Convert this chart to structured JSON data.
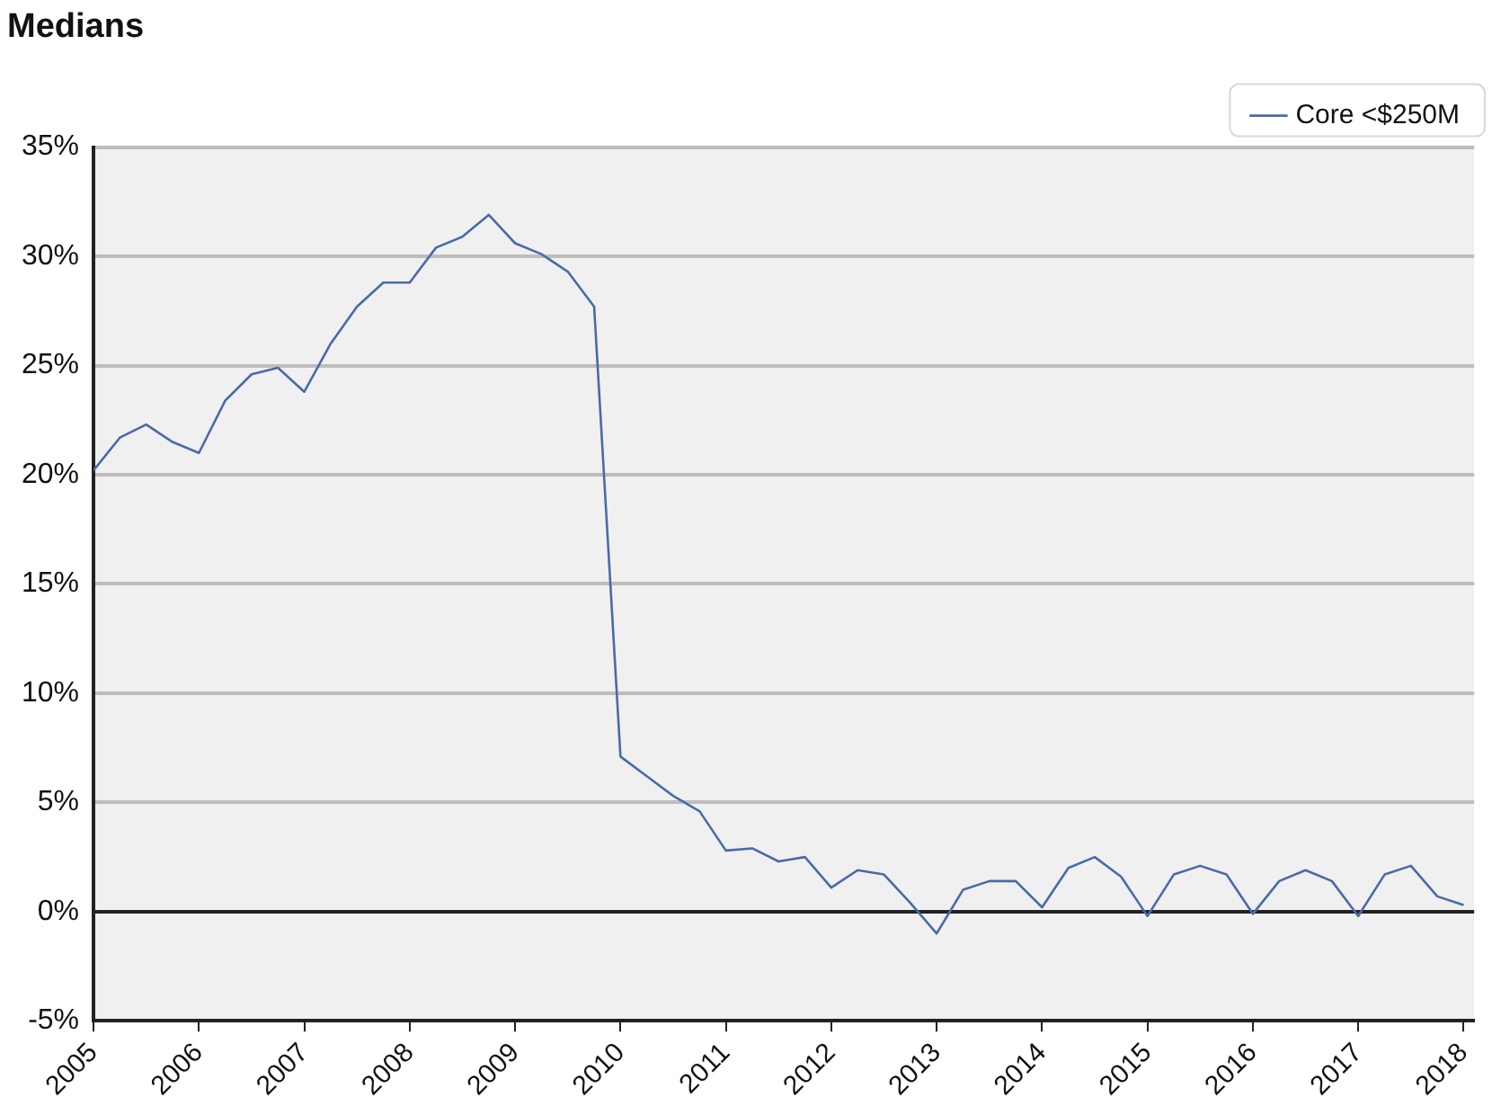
{
  "chart_data": {
    "type": "line",
    "title": "Medians",
    "legend": "top right",
    "grid": "y",
    "xlim": [
      2005,
      2018.1
    ],
    "xticks": [
      2005,
      2006,
      2007,
      2008,
      2009,
      2010,
      2011,
      2012,
      2013,
      2014,
      2015,
      2016,
      2017,
      2018
    ],
    "ylim": [
      -5,
      35
    ],
    "yticks": [
      {
        "value": -5,
        "label": "-5%"
      },
      {
        "value": 0,
        "label": "0%"
      },
      {
        "value": 5,
        "label": "5%"
      },
      {
        "value": 10,
        "label": "10%"
      },
      {
        "value": 15,
        "label": "15%"
      },
      {
        "value": 20,
        "label": "20%"
      },
      {
        "value": 25,
        "label": "25%"
      },
      {
        "value": 30,
        "label": "30%"
      },
      {
        "value": 35,
        "label": "35%"
      }
    ],
    "marker": "none",
    "line_style": "solid",
    "x": [
      2005,
      2005.25,
      2005.5,
      2005.75,
      2006,
      2006.25,
      2006.5,
      2006.75,
      2007,
      2007.25,
      2007.5,
      2007.75,
      2008,
      2008.25,
      2008.5,
      2008.75,
      2009,
      2009.25,
      2009.5,
      2009.75,
      2010,
      2010.25,
      2010.5,
      2010.75,
      2011,
      2011.25,
      2011.5,
      2011.75,
      2012,
      2012.25,
      2012.5,
      2012.75,
      2013,
      2013.25,
      2013.5,
      2013.75,
      2014,
      2014.25,
      2014.5,
      2014.75,
      2015,
      2015.25,
      2015.5,
      2015.75,
      2016,
      2016.25,
      2016.5,
      2016.75,
      2017,
      2017.25,
      2017.5,
      2017.75,
      2018
    ],
    "series": [
      {
        "name": "Core <$250M",
        "color": "#4a6aa8",
        "values": [
          20.2,
          21.7,
          22.3,
          21.5,
          21.0,
          23.4,
          24.6,
          24.9,
          23.8,
          26.0,
          27.7,
          28.8,
          28.8,
          30.4,
          30.9,
          31.9,
          30.6,
          30.1,
          29.3,
          27.7,
          7.1,
          6.2,
          5.3,
          4.6,
          2.8,
          2.9,
          2.3,
          2.5,
          1.1,
          1.9,
          1.7,
          0.4,
          -1.0,
          1.0,
          1.4,
          1.4,
          0.2,
          2.0,
          2.5,
          1.6,
          -0.2,
          1.7,
          2.1,
          1.7,
          -0.1,
          1.4,
          1.9,
          1.4,
          -0.2,
          1.7,
          2.1,
          0.7,
          0.3
        ]
      }
    ]
  }
}
